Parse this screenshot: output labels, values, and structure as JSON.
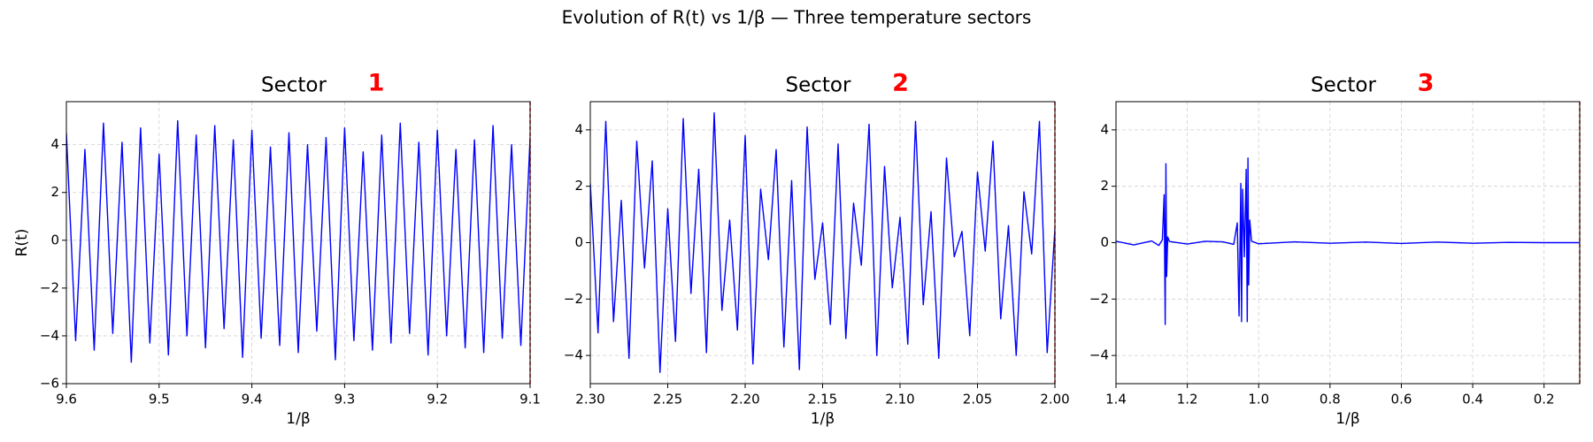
{
  "title": "Evolution of R(t) vs 1/β — Three temperature sectors",
  "chart_data": [
    {
      "type": "line",
      "title": "Sector",
      "annotation": "1",
      "annotation_color": "#ff0000",
      "color": "#0000ff",
      "xlabel": "1/β",
      "ylabel": "R(t)",
      "grid": true,
      "vline": 9.1,
      "vline_color": "#ff0000",
      "xlim": [
        9.6,
        9.1
      ],
      "ylim": [
        -6,
        5.8
      ],
      "xticks": [
        9.6,
        9.5,
        9.4,
        9.3,
        9.2,
        9.1
      ],
      "yticks": [
        {
          "value": -6,
          "label": "−6"
        },
        {
          "value": -4,
          "label": "−4"
        },
        {
          "value": -2,
          "label": "−2"
        },
        0,
        2,
        4
      ],
      "x": [
        9.6,
        9.59,
        9.58,
        9.57,
        9.56,
        9.55,
        9.54,
        9.53,
        9.52,
        9.51,
        9.5,
        9.49,
        9.48,
        9.47,
        9.46,
        9.45,
        9.44,
        9.43,
        9.42,
        9.41,
        9.4,
        9.39,
        9.38,
        9.37,
        9.36,
        9.35,
        9.34,
        9.33,
        9.32,
        9.31,
        9.3,
        9.29,
        9.28,
        9.27,
        9.26,
        9.25,
        9.24,
        9.23,
        9.22,
        9.21,
        9.2,
        9.19,
        9.18,
        9.17,
        9.16,
        9.15,
        9.14,
        9.13,
        9.12,
        9.11,
        9.1
      ],
      "values": [
        4.5,
        -4.2,
        3.8,
        -4.6,
        4.9,
        -3.9,
        4.1,
        -5.1,
        4.7,
        -4.3,
        3.6,
        -4.8,
        5.0,
        -4.0,
        4.4,
        -4.5,
        4.8,
        -3.7,
        4.2,
        -4.9,
        4.6,
        -4.1,
        3.9,
        -4.4,
        4.5,
        -4.7,
        4.0,
        -3.8,
        4.3,
        -5.0,
        4.7,
        -4.2,
        3.7,
        -4.6,
        4.4,
        -4.3,
        4.9,
        -3.9,
        4.1,
        -4.8,
        4.6,
        -4.0,
        3.8,
        -4.5,
        4.2,
        -4.7,
        4.8,
        -4.1,
        4.0,
        -4.4,
        4.3
      ]
    },
    {
      "type": "line",
      "title": "Sector",
      "annotation": "2",
      "annotation_color": "#ff0000",
      "color": "#0000ff",
      "xlabel": "1/β",
      "grid": true,
      "vline": 2.0,
      "vline_color": "#ff0000",
      "xlim": [
        2.3,
        2.0
      ],
      "ylim": [
        -5,
        5
      ],
      "xticks": [
        {
          "value": 2.3,
          "label": "2.30"
        },
        2.25,
        {
          "value": 2.2,
          "label": "2.20"
        },
        2.15,
        {
          "value": 2.1,
          "label": "2.10"
        },
        2.05,
        {
          "value": 2.0,
          "label": "2.00"
        }
      ],
      "yticks": [
        {
          "value": -4,
          "label": "−4"
        },
        {
          "value": -2,
          "label": "−2"
        },
        0,
        2,
        4
      ],
      "x": [
        2.3,
        2.295,
        2.29,
        2.285,
        2.28,
        2.275,
        2.27,
        2.265,
        2.26,
        2.255,
        2.25,
        2.245,
        2.24,
        2.235,
        2.23,
        2.225,
        2.22,
        2.215,
        2.21,
        2.205,
        2.2,
        2.195,
        2.19,
        2.185,
        2.18,
        2.175,
        2.17,
        2.165,
        2.16,
        2.155,
        2.15,
        2.145,
        2.14,
        2.135,
        2.13,
        2.125,
        2.12,
        2.115,
        2.11,
        2.105,
        2.1,
        2.095,
        2.09,
        2.085,
        2.08,
        2.075,
        2.07,
        2.065,
        2.06,
        2.055,
        2.05,
        2.045,
        2.04,
        2.035,
        2.03,
        2.025,
        2.02,
        2.015,
        2.01,
        2.005,
        2.0
      ],
      "values": [
        2.1,
        -3.2,
        4.3,
        -2.8,
        1.5,
        -4.1,
        3.6,
        -0.9,
        2.9,
        -4.6,
        1.2,
        -3.5,
        4.4,
        -1.8,
        2.6,
        -3.9,
        4.6,
        -2.4,
        0.8,
        -3.1,
        3.8,
        -4.3,
        1.9,
        -0.6,
        3.3,
        -3.7,
        2.2,
        -4.5,
        4.1,
        -1.3,
        0.7,
        -2.9,
        3.5,
        -3.4,
        1.4,
        -0.8,
        4.2,
        -4.0,
        2.7,
        -1.6,
        0.9,
        -3.6,
        4.3,
        -2.2,
        1.1,
        -4.1,
        3.0,
        -0.5,
        0.4,
        -3.3,
        2.5,
        -0.3,
        3.6,
        -2.7,
        0.6,
        -4.0,
        1.8,
        -0.4,
        4.3,
        -3.9,
        0.5
      ]
    },
    {
      "type": "line",
      "title": "Sector",
      "annotation": "3",
      "annotation_color": "#ff0000",
      "color": "#0000ff",
      "xlabel": "1/β",
      "grid": true,
      "vline": 0.1,
      "vline_color": "#ff0000",
      "xlim": [
        1.4,
        0.1
      ],
      "ylim": [
        -5,
        5
      ],
      "xticks": [
        1.4,
        1.2,
        {
          "value": 1.0,
          "label": "1.0"
        },
        0.8,
        0.6,
        0.4,
        0.2
      ],
      "yticks": [
        {
          "value": -4,
          "label": "−4"
        },
        {
          "value": -2,
          "label": "−2"
        },
        0,
        2,
        4
      ],
      "x": [
        1.4,
        1.35,
        1.3,
        1.28,
        1.27,
        1.265,
        1.262,
        1.26,
        1.258,
        1.255,
        1.25,
        1.2,
        1.15,
        1.1,
        1.07,
        1.06,
        1.055,
        1.05,
        1.048,
        1.045,
        1.04,
        1.035,
        1.032,
        1.03,
        1.028,
        1.025,
        1.02,
        1.0,
        0.9,
        0.8,
        0.7,
        0.6,
        0.5,
        0.4,
        0.3,
        0.2,
        0.1
      ],
      "values": [
        0.05,
        -0.08,
        0.06,
        -0.1,
        0.1,
        1.7,
        -2.9,
        2.8,
        -1.2,
        0.2,
        0.04,
        -0.05,
        0.05,
        0.03,
        -0.06,
        0.7,
        -2.6,
        2.1,
        -2.8,
        1.9,
        -0.5,
        2.6,
        -2.8,
        3.0,
        -1.5,
        0.8,
        0.05,
        -0.04,
        0.03,
        -0.02,
        0.02,
        -0.03,
        0.02,
        -0.02,
        0.01,
        0,
        0
      ]
    }
  ]
}
